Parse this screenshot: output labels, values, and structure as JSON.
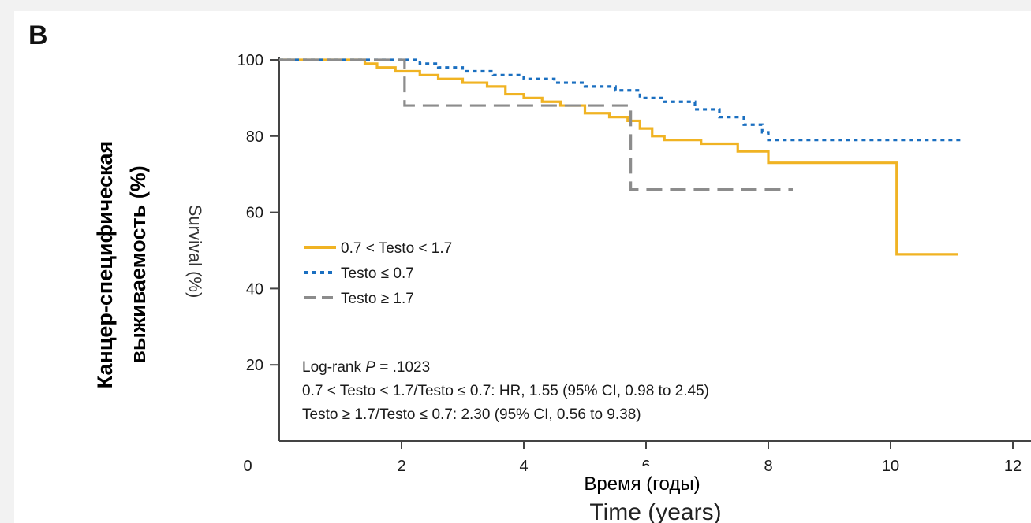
{
  "chart_data": {
    "type": "line",
    "panel_label": "B",
    "ylabel_overlay_line1": "Канцер-специфическая",
    "ylabel_overlay_line2": "выживаемость (%)",
    "ylabel_original": "Survival (%)",
    "xlabel_overlay": "Время (годы)",
    "xlabel_original": "Time (years)",
    "xlim": [
      0,
      12
    ],
    "ylim": [
      0,
      100
    ],
    "x_ticks": [
      "0",
      "2",
      "4",
      "6",
      "8",
      "10",
      "12"
    ],
    "y_ticks": [
      "100",
      "80",
      "60",
      "40",
      "20"
    ],
    "grid": false,
    "legend_position": "center-left",
    "annotation": {
      "line1_prefix": "Log-rank ",
      "line1_p": "P",
      "line1_value": " = .1023",
      "line2": "0.7 < Testo < 1.7/Testo ≤ 0.7: HR, 1.55 (95% CI, 0.98 to 2.45)",
      "line3": "Testo ≥ 1.7/Testo ≤ 0.7: 2.30 (95% CI, 0.56 to 9.38)"
    },
    "series": [
      {
        "name": "0.7 < Testo < 1.7",
        "color": "#f0b323",
        "style": "solid",
        "x": [
          0,
          1.4,
          1.6,
          1.9,
          2.3,
          2.6,
          3.0,
          3.4,
          3.7,
          4.0,
          4.3,
          4.6,
          5.0,
          5.4,
          5.7,
          5.9,
          6.1,
          6.3,
          6.9,
          7.5,
          8.0,
          10.1,
          11.1
        ],
        "y": [
          100,
          99,
          98,
          97,
          96,
          95,
          94,
          93,
          91,
          90,
          89,
          88,
          86,
          85,
          84,
          82,
          80,
          79,
          78,
          76,
          73,
          49,
          49
        ]
      },
      {
        "name": "Testo ≤ 0.7",
        "color": "#1a6fc0",
        "style": "dotted",
        "x": [
          0,
          1.9,
          2.3,
          2.6,
          3.0,
          3.5,
          4.0,
          4.5,
          5.0,
          5.5,
          5.9,
          6.3,
          6.8,
          7.2,
          7.6,
          7.9,
          8.0,
          11.2
        ],
        "y": [
          100,
          100,
          99,
          98,
          97,
          96,
          95,
          94,
          93,
          92,
          90,
          89,
          87,
          85,
          83,
          81,
          79,
          79
        ]
      },
      {
        "name": "Testo ≥ 1.7",
        "color": "#8c8c8c",
        "style": "dashed",
        "x": [
          0,
          2.05,
          5.75,
          8.4
        ],
        "y": [
          100,
          88,
          66,
          66
        ]
      }
    ]
  }
}
